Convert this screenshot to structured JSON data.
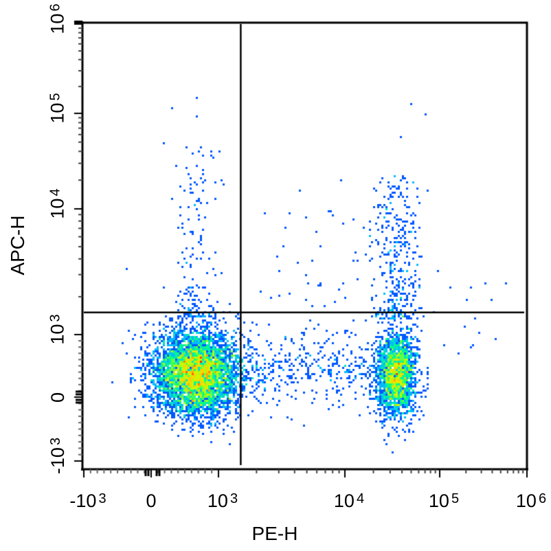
{
  "chart_data": {
    "type": "scatter",
    "subtype": "flow-cytometry-density-dot-plot",
    "title": "",
    "xlabel": "PE-H",
    "ylabel": "APC-H",
    "x_scale": "biexponential",
    "y_scale": "biexponential",
    "xlim": [
      -1000,
      1000000
    ],
    "ylim": [
      -1000,
      1000000
    ],
    "x_ticks": [
      {
        "value": -1000,
        "label_base": "-10",
        "label_exp": "3"
      },
      {
        "value": 0,
        "label_base": "0",
        "label_exp": ""
      },
      {
        "value": 1000,
        "label_base": "10",
        "label_exp": "3"
      },
      {
        "value": 10000,
        "label_base": "10",
        "label_exp": "4"
      },
      {
        "value": 100000,
        "label_base": "10",
        "label_exp": "5"
      },
      {
        "value": 1000000,
        "label_base": "10",
        "label_exp": "6"
      }
    ],
    "y_ticks": [
      {
        "value": -1000,
        "label_base": "-10",
        "label_exp": "3"
      },
      {
        "value": 0,
        "label_base": "0",
        "label_exp": ""
      },
      {
        "value": 1000,
        "label_base": "10",
        "label_exp": "3"
      },
      {
        "value": 10000,
        "label_base": "10",
        "label_exp": "4"
      },
      {
        "value": 100000,
        "label_base": "10",
        "label_exp": "5"
      },
      {
        "value": 1000000,
        "label_base": "10",
        "label_exp": "6"
      }
    ],
    "quadrant_gate": {
      "x": 1500,
      "y": 1500
    },
    "color_scale": [
      "#0000c8",
      "#0050ff",
      "#00c8ff",
      "#00ff80",
      "#c8ff00",
      "#ffd000",
      "#ff2000"
    ],
    "populations": [
      {
        "name": "PE-negative APC-negative",
        "center_x": 300,
        "center_y": 400,
        "density": "high",
        "peak_color": "red",
        "approx_events": 5200
      },
      {
        "name": "PE-positive APC-negative",
        "center_x": 60000,
        "center_y": 400,
        "density": "medium",
        "peak_color": "green",
        "approx_events": 2200
      },
      {
        "name": "PE-negative APC-positive tail",
        "center_x": 300,
        "center_y": 3000,
        "density": "sparse",
        "approx_events": 150
      },
      {
        "name": "PE-positive APC-positive tail",
        "center_x": 60000,
        "center_y": 6000,
        "density": "sparse",
        "approx_events": 350
      },
      {
        "name": "intermediate PE bridge",
        "center_x": 8000,
        "center_y": 400,
        "density": "sparse",
        "approx_events": 450
      }
    ],
    "grid": false,
    "legend": null
  },
  "axes": {
    "x_title": "PE-H",
    "y_title": "APC-H"
  }
}
